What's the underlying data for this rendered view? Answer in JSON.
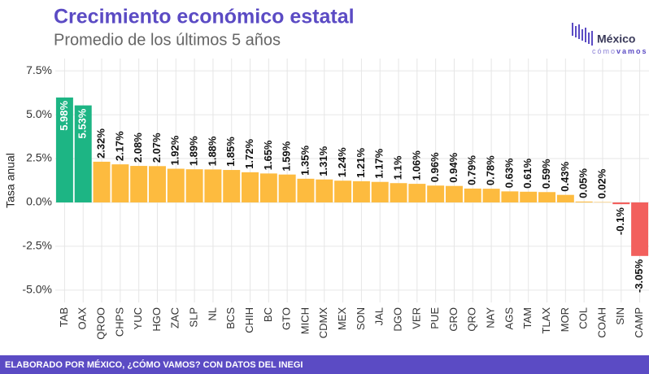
{
  "chart_data": {
    "type": "bar",
    "title": "Crecimiento económico estatal",
    "subtitle": "Promedio de los últimos 5 años",
    "y_label": "Tasa anual",
    "categories": [
      "TAB",
      "OAX",
      "QROO",
      "CHPS",
      "YUC",
      "HGO",
      "ZAC",
      "SLP",
      "NL",
      "BCS",
      "CHIH",
      "BC",
      "GTO",
      "MICH",
      "CDMX",
      "MEX",
      "SON",
      "JAL",
      "DGO",
      "VER",
      "PUE",
      "GRO",
      "QRO",
      "NAY",
      "AGS",
      "TAM",
      "TLAX",
      "MOR",
      "COL",
      "COAH",
      "SIN",
      "CAMP"
    ],
    "values": [
      5.98,
      5.53,
      2.32,
      2.17,
      2.08,
      2.07,
      1.92,
      1.89,
      1.88,
      1.85,
      1.72,
      1.65,
      1.59,
      1.35,
      1.31,
      1.24,
      1.21,
      1.17,
      1.1,
      1.06,
      0.96,
      0.94,
      0.79,
      0.78,
      0.63,
      0.61,
      0.59,
      0.43,
      0.05,
      0.02,
      -0.1,
      -3.05
    ],
    "value_labels": [
      "5.98%",
      "5.53%",
      "2.32%",
      "2.17%",
      "2.08%",
      "2.07%",
      "1.92%",
      "1.89%",
      "1.88%",
      "1.85%",
      "1.72%",
      "1.65%",
      "1.59%",
      "1.35%",
      "1.31%",
      "1.24%",
      "1.21%",
      "1.17%",
      "1.1%",
      "1.06%",
      "0.96%",
      "0.94%",
      "0.79%",
      "0.78%",
      "0.63%",
      "0.61%",
      "0.59%",
      "0.43%",
      "0.05%",
      "0.02%",
      "-0.1%",
      "-3.05%"
    ],
    "colors": [
      "#1db584",
      "#1db584",
      "#fdbb3f",
      "#fdbb3f",
      "#fdbb3f",
      "#fdbb3f",
      "#fdbb3f",
      "#fdbb3f",
      "#fdbb3f",
      "#fdbb3f",
      "#fdbb3f",
      "#fdbb3f",
      "#fdbb3f",
      "#fdbb3f",
      "#fdbb3f",
      "#fdbb3f",
      "#fdbb3f",
      "#fdbb3f",
      "#fdbb3f",
      "#fdbb3f",
      "#fdbb3f",
      "#fdbb3f",
      "#fdbb3f",
      "#fdbb3f",
      "#fdbb3f",
      "#fdbb3f",
      "#fdbb3f",
      "#fdbb3f",
      "#fdbb3f",
      "#fdbb3f",
      "#f2605d",
      "#f2605d"
    ],
    "ylim": [
      -5.7,
      8.2
    ],
    "yticks": [
      {
        "value": -5,
        "label": "-5.0%"
      },
      {
        "value": -2.5,
        "label": "-2.5%"
      },
      {
        "value": 0,
        "label": "0.0%"
      },
      {
        "value": 2.5,
        "label": "2.5%"
      },
      {
        "value": 5,
        "label": "5.0%"
      },
      {
        "value": 7.5,
        "label": "7.5%"
      }
    ],
    "grid": true
  },
  "logo": {
    "name": "México",
    "tagline_1": "cómo",
    "tagline_2": "vamos"
  },
  "footer": "ELABORADO POR MÉXICO, ¿CÓMO VAMOS? CON DATOS DEL INEGI"
}
